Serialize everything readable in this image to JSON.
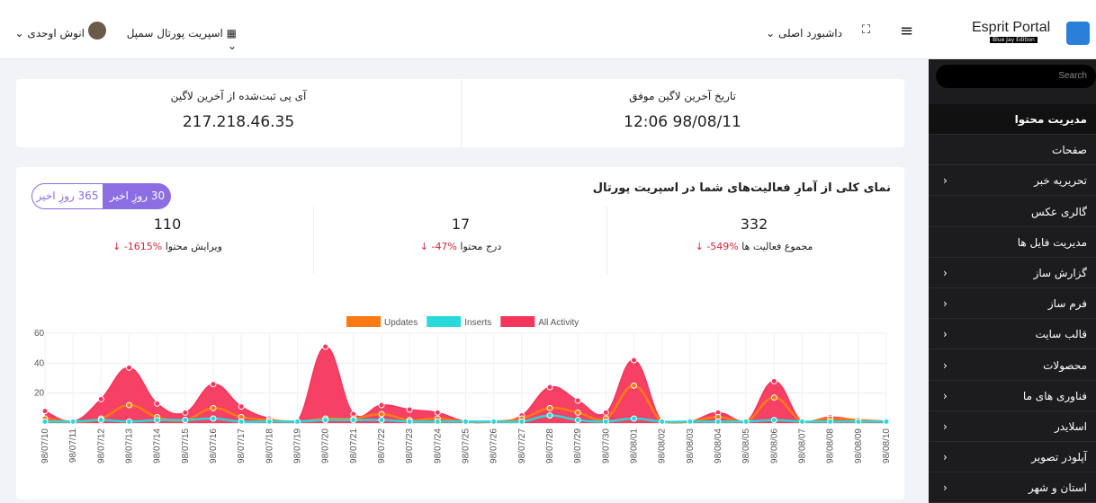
{
  "header": {
    "brand": "Esprit Portal",
    "edition": "Blue Jay Edition",
    "dashboard": "داشبورد اصلی",
    "site": "اسپریت پورتال سمپل",
    "user": "انوش اوحدی"
  },
  "sidebar": {
    "search": "Search",
    "items": [
      {
        "label": "مدیریت محتوا",
        "submenu": false
      },
      {
        "label": "صفحات",
        "submenu": false
      },
      {
        "label": "تحریریه خبر",
        "submenu": true
      },
      {
        "label": "گالری عکس",
        "submenu": false
      },
      {
        "label": "مدیریت فایل ها",
        "submenu": false
      },
      {
        "label": "گزارش ساز",
        "submenu": true
      },
      {
        "label": "فرم ساز",
        "submenu": true
      },
      {
        "label": "قالب سایت",
        "submenu": true
      },
      {
        "label": "محصولات",
        "submenu": true
      },
      {
        "label": "فناوری های ما",
        "submenu": true
      },
      {
        "label": "اسلایدر",
        "submenu": true
      },
      {
        "label": "آپلودر تصویر",
        "submenu": true
      },
      {
        "label": "استان و شهر",
        "submenu": true
      }
    ]
  },
  "login": {
    "date_label": "تاریخ آخرین لاگین موفق",
    "date": "12:06 98/08/11",
    "ip_label": "آی پی ثبت‌شده از آخرین لاگین",
    "ip": "217.218.46.35"
  },
  "stats": {
    "title": "نمای کلی از آمارِ فعالیت‌های شما در اسپریت پورتال",
    "tabs": [
      "30 روزِ اخیر",
      "365 روزِ اخیر"
    ],
    "items": [
      {
        "value": "332",
        "label": "مجموع فعالیت ها",
        "change": "-549%"
      },
      {
        "value": "17",
        "label": "درج محتوا",
        "change": "-47%"
      },
      {
        "value": "110",
        "label": "ویرایش محتوا",
        "change": "-1615%"
      }
    ]
  },
  "chart_data": {
    "type": "area",
    "categories": [
      "98/07/10",
      "98/07/11",
      "98/07/12",
      "98/07/13",
      "98/07/14",
      "98/07/15",
      "98/07/16",
      "98/07/17",
      "98/07/18",
      "98/07/19",
      "98/07/20",
      "98/07/21",
      "98/07/22",
      "98/07/23",
      "98/07/24",
      "98/07/25",
      "98/07/26",
      "98/07/27",
      "98/07/28",
      "98/07/29",
      "98/07/30",
      "98/08/01",
      "98/08/02",
      "98/08/03",
      "98/08/04",
      "98/08/05",
      "98/08/06",
      "98/08/07",
      "98/08/08",
      "98/08/09",
      "98/08/10"
    ],
    "series": [
      {
        "name": "Updates",
        "color": "#fb7a14",
        "values": [
          3,
          1,
          3,
          12,
          4,
          2,
          10,
          4,
          2,
          1,
          3,
          3,
          6,
          2,
          3,
          1,
          1,
          3,
          10,
          7,
          3,
          25,
          1,
          1,
          4,
          1,
          17,
          1,
          3,
          2,
          1
        ]
      },
      {
        "name": "Inserts",
        "color": "#2ad9d9",
        "values": [
          1,
          1,
          2,
          1,
          2,
          2,
          3,
          1,
          1,
          1,
          2,
          2,
          2,
          1,
          1,
          1,
          1,
          1,
          5,
          2,
          1,
          3,
          1,
          1,
          1,
          1,
          2,
          1,
          1,
          1,
          1
        ]
      },
      {
        "name": "All Activity",
        "color": "#f5365c",
        "values": [
          8,
          1,
          16,
          37,
          13,
          7,
          26,
          11,
          3,
          1,
          51,
          6,
          12,
          9,
          7,
          1,
          1,
          5,
          24,
          15,
          7,
          42,
          1,
          1,
          7,
          1,
          28,
          1,
          4,
          2,
          1
        ]
      }
    ],
    "ylim": [
      0,
      60
    ],
    "yticks": [
      20,
      40,
      60
    ],
    "grid": true
  }
}
